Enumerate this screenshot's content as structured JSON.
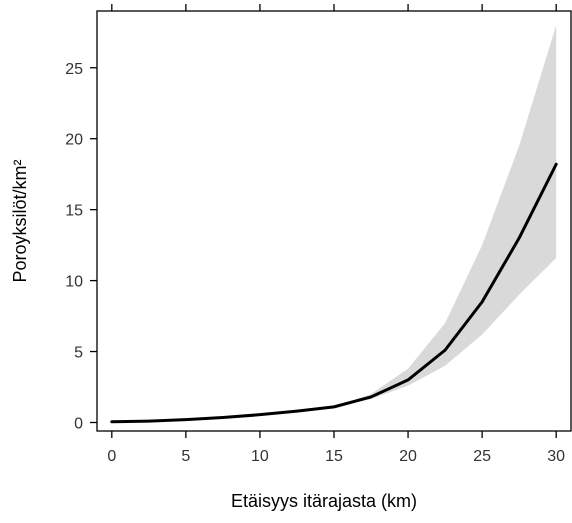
{
  "chart_data": {
    "type": "line",
    "title": "",
    "xlabel": "Etäisyys itärajasta (km)",
    "ylabel": "Poroyksilöt/km²",
    "xlim": [
      -1,
      31
    ],
    "ylim": [
      -0.6,
      29
    ],
    "xticks": [
      0,
      5,
      10,
      15,
      20,
      25,
      30
    ],
    "yticks": [
      0,
      5,
      10,
      15,
      20,
      25
    ],
    "xtick_labels": [
      "0",
      "5",
      "10",
      "15",
      "20",
      "25",
      "30"
    ],
    "ytick_labels": [
      "0",
      "5",
      "10",
      "15",
      "20",
      "25"
    ],
    "series": [
      {
        "x": [
          0,
          2.5,
          5,
          7.5,
          10,
          12.5,
          15,
          17.5,
          20,
          22.5,
          25,
          27.5,
          30
        ],
        "values": [
          0.05,
          0.1,
          0.2,
          0.35,
          0.55,
          0.8,
          1.1,
          1.8,
          3.0,
          5.1,
          8.5,
          13.0,
          18.2
        ]
      }
    ],
    "confidence_band": {
      "x": [
        0,
        2.5,
        5,
        7.5,
        10,
        12.5,
        15,
        17.5,
        20,
        22.5,
        25,
        27.5,
        30
      ],
      "lower": [
        0.05,
        0.1,
        0.2,
        0.35,
        0.55,
        0.8,
        1.1,
        1.65,
        2.6,
        4.0,
        6.2,
        9.0,
        11.6
      ],
      "upper": [
        0.05,
        0.1,
        0.2,
        0.35,
        0.55,
        0.8,
        1.1,
        2.0,
        3.8,
        7.0,
        12.5,
        19.5,
        28.0
      ]
    },
    "colors": {
      "line": "#000000",
      "band": "#d9d9d9",
      "frame": "#000000"
    },
    "grid": false,
    "legend": "none"
  }
}
